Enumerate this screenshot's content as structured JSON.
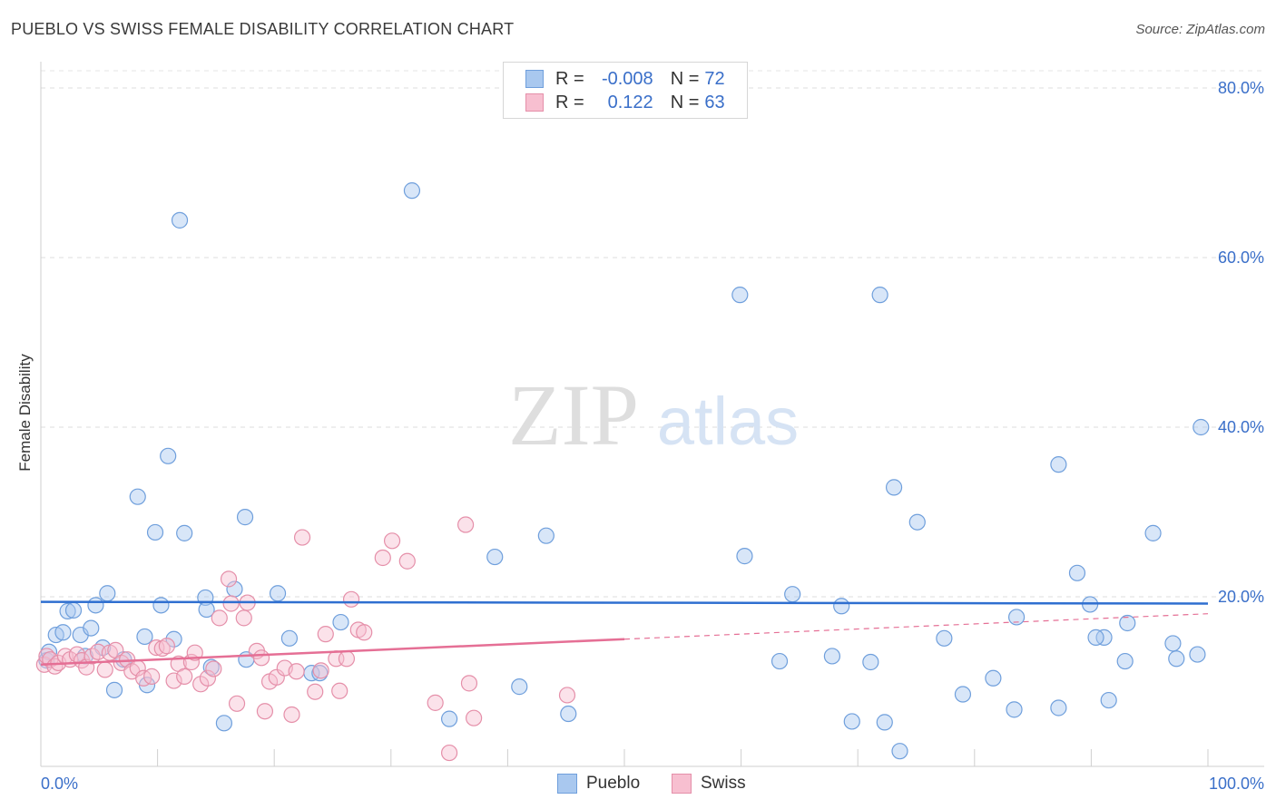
{
  "title": "PUEBLO VS SWISS FEMALE DISABILITY CORRELATION CHART",
  "source": "Source: ZipAtlas.com",
  "watermark": {
    "zip": "ZIP",
    "atlas": "atlas"
  },
  "legend": {
    "rows": [
      {
        "r_label": "R =",
        "r_value": "-0.008",
        "n_label": "N =",
        "n_value": "72",
        "color": "#a9c8ef",
        "border": "#6f9fdc"
      },
      {
        "r_label": "R =",
        "r_value": "0.122",
        "n_label": "N =",
        "n_value": "63",
        "color": "#f7bfd0",
        "border": "#e58fa9"
      }
    ]
  },
  "bottom_legend": [
    {
      "label": "Pueblo",
      "color": "#a9c8ef",
      "border": "#6f9fdc"
    },
    {
      "label": "Swiss",
      "color": "#f7bfd0",
      "border": "#e58fa9"
    }
  ],
  "chart_data": {
    "type": "scatter",
    "title": "PUEBLO VS SWISS FEMALE DISABILITY CORRELATION CHART",
    "xlabel": "",
    "ylabel": "Female Disability",
    "xlim": [
      0,
      100
    ],
    "ylim": [
      0,
      80
    ],
    "x_tick_labels": [
      "0.0%",
      "100.0%"
    ],
    "y_ticks": [
      20,
      40,
      60,
      80
    ],
    "y_tick_labels": [
      "20.0%",
      "40.0%",
      "60.0%",
      "80.0%"
    ],
    "grid": true,
    "series": [
      {
        "name": "Pueblo",
        "color": "#a9c8ef",
        "stroke": "#6f9fdc",
        "line_color": "#2f6fd0",
        "trend": {
          "x": [
            0,
            100
          ],
          "y": [
            19.4,
            19.2
          ],
          "dashed_from": null
        },
        "points": [
          [
            0.5,
            12.5
          ],
          [
            0.7,
            13.5
          ],
          [
            1.3,
            15.5
          ],
          [
            1.9,
            15.8
          ],
          [
            2.3,
            18.3
          ],
          [
            2.8,
            18.4
          ],
          [
            3.4,
            15.5
          ],
          [
            3.8,
            13
          ],
          [
            4.3,
            16.3
          ],
          [
            4.7,
            19
          ],
          [
            5.3,
            14
          ],
          [
            5.7,
            20.4
          ],
          [
            6.3,
            9
          ],
          [
            7.1,
            12.6
          ],
          [
            8.3,
            31.8
          ],
          [
            8.9,
            15.3
          ],
          [
            9.1,
            9.6
          ],
          [
            9.8,
            27.6
          ],
          [
            10.3,
            19
          ],
          [
            10.9,
            36.6
          ],
          [
            11.4,
            15
          ],
          [
            11.9,
            64.4
          ],
          [
            12.3,
            27.5
          ],
          [
            14.1,
            19.9
          ],
          [
            14.2,
            18.5
          ],
          [
            14.6,
            11.7
          ],
          [
            15.7,
            5.1
          ],
          [
            16.6,
            20.9
          ],
          [
            17.5,
            29.4
          ],
          [
            17.6,
            12.6
          ],
          [
            20.3,
            20.4
          ],
          [
            21.3,
            15.1
          ],
          [
            23.2,
            11
          ],
          [
            23.9,
            11
          ],
          [
            25.7,
            17
          ],
          [
            31.8,
            67.9
          ],
          [
            35,
            5.6
          ],
          [
            38.9,
            24.7
          ],
          [
            41,
            9.4
          ],
          [
            43.3,
            27.2
          ],
          [
            45.2,
            6.2
          ],
          [
            59.9,
            55.6
          ],
          [
            60.3,
            24.8
          ],
          [
            63.3,
            12.4
          ],
          [
            64.4,
            20.3
          ],
          [
            67.8,
            13
          ],
          [
            68.6,
            18.9
          ],
          [
            69.5,
            5.3
          ],
          [
            71.1,
            12.3
          ],
          [
            73.1,
            32.9
          ],
          [
            71.9,
            55.6
          ],
          [
            72.3,
            5.2
          ],
          [
            73.6,
            1.8
          ],
          [
            75.1,
            28.8
          ],
          [
            77.4,
            15.1
          ],
          [
            79,
            8.5
          ],
          [
            81.6,
            10.4
          ],
          [
            83.4,
            6.7
          ],
          [
            83.6,
            17.6
          ],
          [
            87.2,
            35.6
          ],
          [
            87.2,
            6.9
          ],
          [
            88.8,
            22.8
          ],
          [
            89.9,
            19.1
          ],
          [
            91.1,
            15.2
          ],
          [
            90.4,
            15.2
          ],
          [
            91.5,
            7.8
          ],
          [
            92.9,
            12.4
          ],
          [
            93.1,
            16.9
          ],
          [
            95.3,
            27.5
          ],
          [
            97,
            14.5
          ],
          [
            97.3,
            12.7
          ],
          [
            99.1,
            13.2
          ],
          [
            99.4,
            40
          ]
        ]
      },
      {
        "name": "Swiss",
        "color": "#f7bfd0",
        "stroke": "#e58fa9",
        "line_color": "#e56f95",
        "trend": {
          "x": [
            0,
            100
          ],
          "y": [
            12,
            18
          ],
          "dashed_from": 50
        },
        "points": [
          [
            0.3,
            12
          ],
          [
            0.5,
            13
          ],
          [
            0.8,
            12.6
          ],
          [
            1.2,
            11.8
          ],
          [
            1.5,
            12.2
          ],
          [
            2.1,
            13
          ],
          [
            2.5,
            12.6
          ],
          [
            3.1,
            13.2
          ],
          [
            3.5,
            12.5
          ],
          [
            3.9,
            11.7
          ],
          [
            4.4,
            13
          ],
          [
            4.9,
            13.5
          ],
          [
            5.5,
            11.4
          ],
          [
            5.9,
            13.4
          ],
          [
            6.4,
            13.7
          ],
          [
            6.9,
            12.2
          ],
          [
            7.4,
            12.6
          ],
          [
            7.8,
            11.2
          ],
          [
            8.3,
            11.6
          ],
          [
            8.8,
            10.4
          ],
          [
            9.5,
            10.6
          ],
          [
            9.9,
            14
          ],
          [
            10.4,
            13.9
          ],
          [
            10.8,
            14.2
          ],
          [
            11.4,
            10.1
          ],
          [
            11.8,
            12.1
          ],
          [
            12.3,
            10.6
          ],
          [
            12.9,
            12.3
          ],
          [
            13.2,
            13.4
          ],
          [
            13.7,
            9.7
          ],
          [
            14.3,
            10.4
          ],
          [
            14.8,
            11.5
          ],
          [
            15.3,
            17.5
          ],
          [
            16.1,
            22.1
          ],
          [
            16.3,
            19.2
          ],
          [
            16.8,
            7.4
          ],
          [
            17.4,
            17.5
          ],
          [
            17.7,
            19.3
          ],
          [
            18.5,
            13.6
          ],
          [
            18.9,
            12.8
          ],
          [
            19.2,
            6.5
          ],
          [
            19.6,
            10
          ],
          [
            20.2,
            10.5
          ],
          [
            20.9,
            11.6
          ],
          [
            21.5,
            6.1
          ],
          [
            21.9,
            11.2
          ],
          [
            22.4,
            27
          ],
          [
            23.5,
            8.8
          ],
          [
            24,
            11.3
          ],
          [
            24.4,
            15.6
          ],
          [
            25.3,
            12.7
          ],
          [
            25.6,
            8.9
          ],
          [
            26.2,
            12.7
          ],
          [
            26.6,
            19.7
          ],
          [
            27.2,
            16.1
          ],
          [
            27.7,
            15.8
          ],
          [
            29.3,
            24.6
          ],
          [
            30.1,
            26.6
          ],
          [
            31.4,
            24.2
          ],
          [
            33.8,
            7.5
          ],
          [
            35,
            1.6
          ],
          [
            36.4,
            28.5
          ],
          [
            36.7,
            9.8
          ],
          [
            37.1,
            5.7
          ],
          [
            45.1,
            8.4
          ]
        ]
      }
    ]
  }
}
